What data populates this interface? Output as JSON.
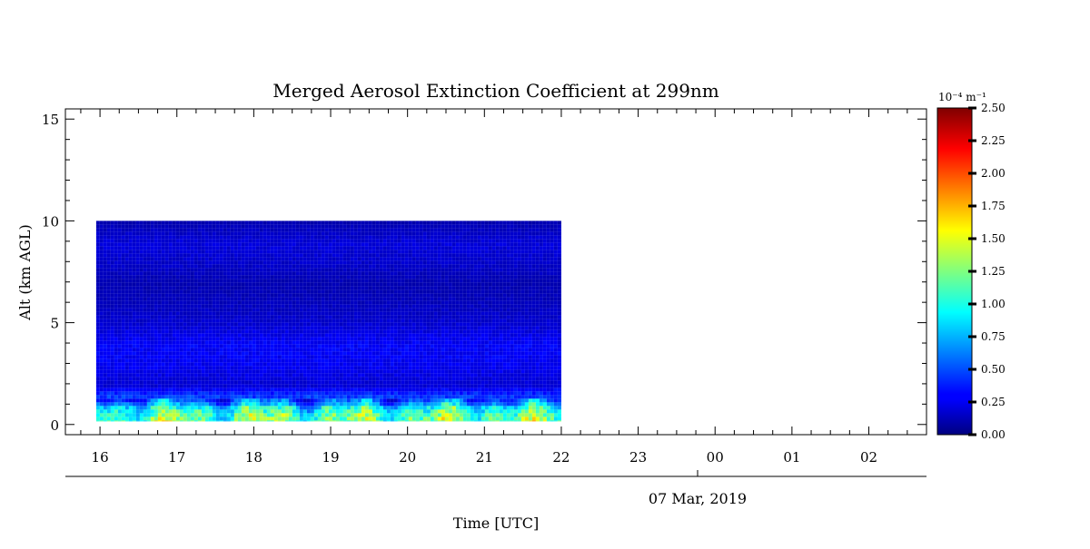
{
  "chart_data": {
    "type": "heatmap",
    "title": "Merged Aerosol Extinction Coefficient at 299nm",
    "xlabel": "Time [UTC]",
    "ylabel": "Alt (km AGL)",
    "date_label": "07 Mar, 2019",
    "x_ticks": [
      "16",
      "17",
      "18",
      "19",
      "20",
      "21",
      "22",
      "23",
      "00",
      "01",
      "02"
    ],
    "x_range_hours": [
      15.55,
      26.75
    ],
    "y_ticks": [
      "0",
      "5",
      "10",
      "15"
    ],
    "ylim": [
      -0.5,
      15.5
    ],
    "data_extent": {
      "x_start_hours": 15.95,
      "x_end_hours": 22.0,
      "alt_min_km": 0.15,
      "alt_max_km": 10.0
    },
    "colorbar": {
      "unit": "10⁻⁴ m⁻¹",
      "ticks": [
        "0.00",
        "0.25",
        "0.50",
        "0.75",
        "1.00",
        "1.25",
        "1.50",
        "1.75",
        "2.00",
        "2.25",
        "2.50"
      ],
      "range": [
        0,
        2.5
      ],
      "colormap": "jet"
    },
    "profile": [
      {
        "alt_km": 0.15,
        "value": 1.2
      },
      {
        "alt_km": 0.5,
        "value": 1.15
      },
      {
        "alt_km": 0.9,
        "value": 0.95
      },
      {
        "alt_km": 1.2,
        "value": 0.55
      },
      {
        "alt_km": 1.6,
        "value": 0.4
      },
      {
        "alt_km": 2.0,
        "value": 0.2
      },
      {
        "alt_km": 3.0,
        "value": 0.28
      },
      {
        "alt_km": 4.0,
        "value": 0.3
      },
      {
        "alt_km": 5.0,
        "value": 0.2
      },
      {
        "alt_km": 6.0,
        "value": 0.15
      },
      {
        "alt_km": 7.0,
        "value": 0.12
      },
      {
        "alt_km": 8.0,
        "value": 0.18
      },
      {
        "alt_km": 9.0,
        "value": 0.22
      },
      {
        "alt_km": 10.0,
        "value": 0.12
      }
    ]
  }
}
